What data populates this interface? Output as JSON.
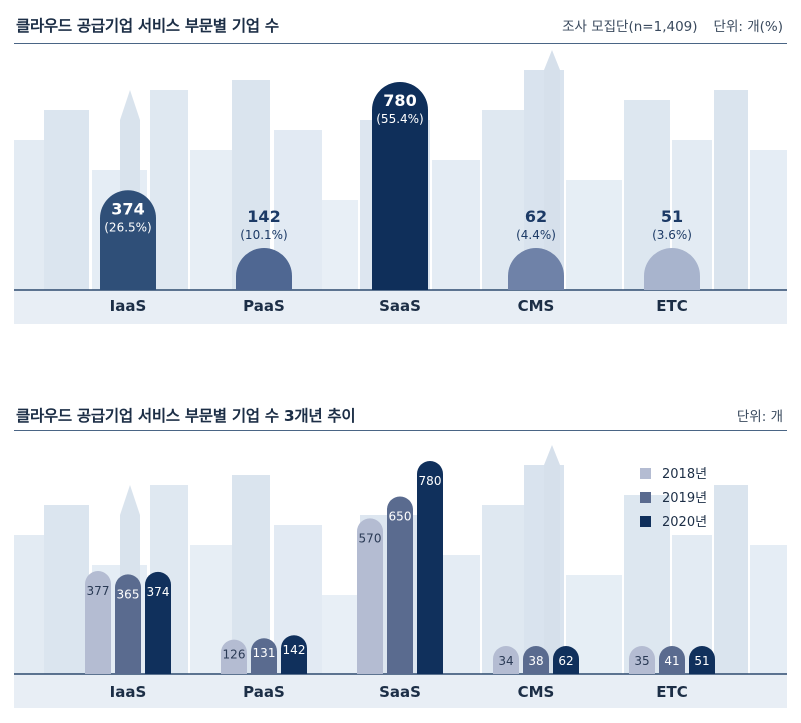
{
  "chart_data": [
    {
      "type": "bar",
      "title": "클라우드 공급기업 서비스 부문별 기업 수",
      "note_left": "조사 모집단(n=1,409)",
      "note_right": "단위: 개(%)",
      "categories": [
        "IaaS",
        "PaaS",
        "SaaS",
        "CMS",
        "ETC"
      ],
      "values": [
        374,
        142,
        780,
        62,
        51
      ],
      "value_labels": [
        "374",
        "142",
        "780",
        "62",
        "51"
      ],
      "percent_labels": [
        "(26.5%)",
        "(10.1%)",
        "(55.4%)",
        "(4.4%)",
        "(3.6%)"
      ],
      "colors": [
        "#2f4f78",
        "#4f6792",
        "#0f2f5a",
        "#6f82a8",
        "#a8b4cd"
      ],
      "ylim": [
        0,
        780
      ]
    },
    {
      "type": "bar",
      "title": "클라우드 공급기업 서비스 부문별 기업 수 3개년 추이",
      "note": "단위: 개",
      "categories": [
        "IaaS",
        "PaaS",
        "SaaS",
        "CMS",
        "ETC"
      ],
      "series": [
        {
          "name": "2018년",
          "color": "#b4bcd2",
          "values": [
            377,
            126,
            570,
            34,
            35
          ]
        },
        {
          "name": "2019년",
          "color": "#5a6b8f",
          "values": [
            365,
            131,
            650,
            38,
            41
          ]
        },
        {
          "name": "2020년",
          "color": "#10305c",
          "values": [
            374,
            142,
            780,
            62,
            51
          ]
        }
      ],
      "legend_position": "top-right",
      "ylim": [
        0,
        780
      ]
    }
  ]
}
